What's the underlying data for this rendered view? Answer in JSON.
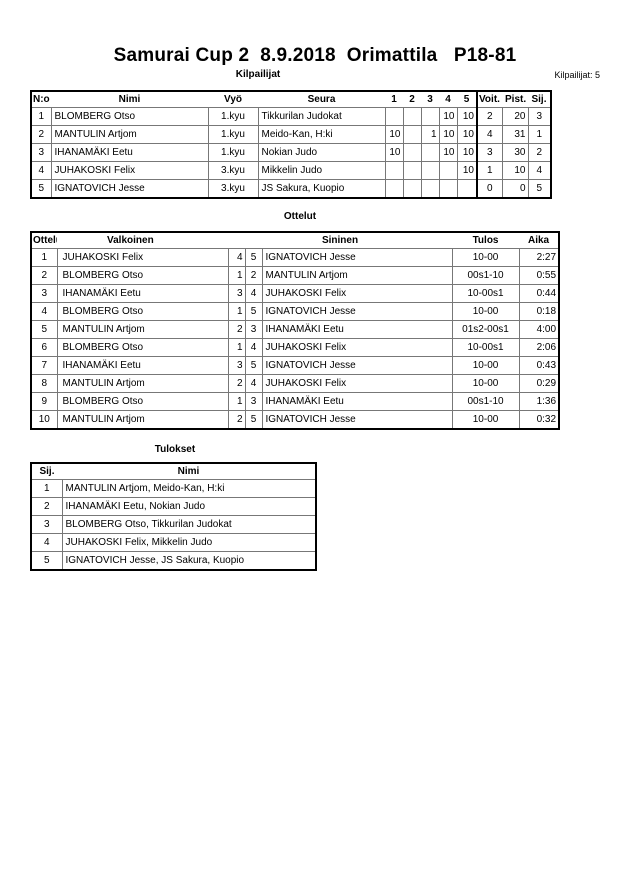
{
  "title": "Samurai Cup 2  8.9.2018  Orimattila   P18-81",
  "competitors": {
    "heading": "Kilpailijat",
    "count_label": "Kilpailijat: 5",
    "headers": [
      "N:o",
      "Nimi",
      "Vyö",
      "Seura",
      "1",
      "2",
      "3",
      "4",
      "5",
      "Voit.",
      "Pist.",
      "Sij."
    ],
    "rows": [
      [
        "1",
        "BLOMBERG Otso",
        "1.kyu",
        "Tikkurilan Judokat",
        "",
        "",
        "",
        "10",
        "10",
        "2",
        "20",
        "3"
      ],
      [
        "2",
        "MANTULIN Artjom",
        "1.kyu",
        "Meido-Kan, H:ki",
        "10",
        "",
        "1",
        "10",
        "10",
        "4",
        "31",
        "1"
      ],
      [
        "3",
        "IHANAMÄKI Eetu",
        "1.kyu",
        "Nokian Judo",
        "10",
        "",
        "",
        "10",
        "10",
        "3",
        "30",
        "2"
      ],
      [
        "4",
        "JUHAKOSKI Felix",
        "3.kyu",
        "Mikkelin Judo",
        "",
        "",
        "",
        "",
        "10",
        "1",
        "10",
        "4"
      ],
      [
        "5",
        "IGNATOVICH Jesse",
        "3.kyu",
        "JS Sakura, Kuopio",
        "",
        "",
        "",
        "",
        "",
        "0",
        "0",
        "5"
      ]
    ]
  },
  "matches": {
    "heading": "Ottelut",
    "headers": [
      "Ottelu",
      "Valkoinen",
      "Sininen",
      "Tulos",
      "Aika"
    ],
    "rows": [
      [
        "1",
        "JUHAKOSKI Felix",
        "4",
        "5",
        "IGNATOVICH Jesse",
        "10-00",
        "2:27"
      ],
      [
        "2",
        "BLOMBERG Otso",
        "1",
        "2",
        "MANTULIN Artjom",
        "00s1-10",
        "0:55"
      ],
      [
        "3",
        "IHANAMÄKI Eetu",
        "3",
        "4",
        "JUHAKOSKI Felix",
        "10-00s1",
        "0:44"
      ],
      [
        "4",
        "BLOMBERG Otso",
        "1",
        "5",
        "IGNATOVICH Jesse",
        "10-00",
        "0:18"
      ],
      [
        "5",
        "MANTULIN Artjom",
        "2",
        "3",
        "IHANAMÄKI Eetu",
        "01s2-00s1",
        "4:00"
      ],
      [
        "6",
        "BLOMBERG Otso",
        "1",
        "4",
        "JUHAKOSKI Felix",
        "10-00s1",
        "2:06"
      ],
      [
        "7",
        "IHANAMÄKI Eetu",
        "3",
        "5",
        "IGNATOVICH Jesse",
        "10-00",
        "0:43"
      ],
      [
        "8",
        "MANTULIN Artjom",
        "2",
        "4",
        "JUHAKOSKI Felix",
        "10-00",
        "0:29"
      ],
      [
        "9",
        "BLOMBERG Otso",
        "1",
        "3",
        "IHANAMÄKI Eetu",
        "00s1-10",
        "1:36"
      ],
      [
        "10",
        "MANTULIN Artjom",
        "2",
        "5",
        "IGNATOVICH Jesse",
        "10-00",
        "0:32"
      ]
    ]
  },
  "results": {
    "heading": "Tulokset",
    "headers": [
      "Sij.",
      "Nimi"
    ],
    "rows": [
      [
        "1",
        "MANTULIN Artjom, Meido-Kan, H:ki"
      ],
      [
        "2",
        "IHANAMÄKI Eetu, Nokian Judo"
      ],
      [
        "3",
        "BLOMBERG Otso, Tikkurilan Judokat"
      ],
      [
        "4",
        "JUHAKOSKI Felix, Mikkelin Judo"
      ],
      [
        "5",
        "IGNATOVICH Jesse, JS Sakura, Kuopio"
      ]
    ]
  }
}
